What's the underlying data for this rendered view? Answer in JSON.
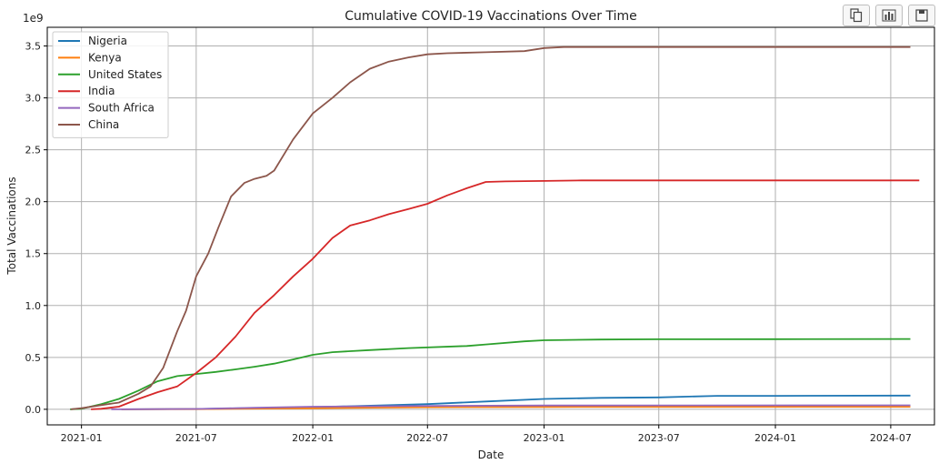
{
  "toolbar": {
    "buttons": [
      {
        "icon": "copy-icon"
      },
      {
        "icon": "bar-chart-icon"
      },
      {
        "icon": "save-icon"
      }
    ]
  },
  "chart_data": {
    "type": "line",
    "title": "Cumulative COVID-19 Vaccinations Over Time",
    "xlabel": "Date",
    "ylabel": "Total Vaccinations",
    "y_multiplier_label": "1e9",
    "x_range": [
      "2020-11-08",
      "2024-09-08"
    ],
    "ylim": [
      -0.15,
      3.68
    ],
    "x_ticks": [
      {
        "date": "2021-01-01",
        "label": "2021-01"
      },
      {
        "date": "2021-07-01",
        "label": "2021-07"
      },
      {
        "date": "2022-01-01",
        "label": "2022-01"
      },
      {
        "date": "2022-07-01",
        "label": "2022-07"
      },
      {
        "date": "2023-01-01",
        "label": "2023-01"
      },
      {
        "date": "2023-07-01",
        "label": "2023-07"
      },
      {
        "date": "2024-01-01",
        "label": "2024-01"
      },
      {
        "date": "2024-07-01",
        "label": "2024-07"
      }
    ],
    "y_ticks": [
      {
        "value": 0.0,
        "label": "0.0"
      },
      {
        "value": 0.5,
        "label": "0.5"
      },
      {
        "value": 1.0,
        "label": "1.0"
      },
      {
        "value": 1.5,
        "label": "1.5"
      },
      {
        "value": 2.0,
        "label": "2.0"
      },
      {
        "value": 2.5,
        "label": "2.5"
      },
      {
        "value": 3.0,
        "label": "3.0"
      },
      {
        "value": 3.5,
        "label": "3.5"
      }
    ],
    "grid": true,
    "legend_position": "top-left",
    "series": [
      {
        "name": "Nigeria",
        "color": "#1f77b4",
        "points": [
          [
            "2021-03-05",
            0
          ],
          [
            "2021-07-01",
            0.003
          ],
          [
            "2022-01-01",
            0.02
          ],
          [
            "2022-07-01",
            0.05
          ],
          [
            "2022-10-01",
            0.075
          ],
          [
            "2023-01-01",
            0.1
          ],
          [
            "2023-04-01",
            0.11
          ],
          [
            "2023-07-01",
            0.115
          ],
          [
            "2023-10-01",
            0.13
          ],
          [
            "2024-01-01",
            0.13
          ],
          [
            "2024-08-01",
            0.132
          ]
        ]
      },
      {
        "name": "Kenya",
        "color": "#ff7f0e",
        "points": [
          [
            "2021-03-05",
            0
          ],
          [
            "2021-07-01",
            0.002
          ],
          [
            "2022-01-01",
            0.01
          ],
          [
            "2022-07-01",
            0.02
          ],
          [
            "2023-01-01",
            0.023
          ],
          [
            "2024-08-01",
            0.024
          ]
        ]
      },
      {
        "name": "United States",
        "color": "#2ca02c",
        "points": [
          [
            "2020-12-14",
            0
          ],
          [
            "2021-01-01",
            0.005
          ],
          [
            "2021-02-01",
            0.05
          ],
          [
            "2021-03-01",
            0.1
          ],
          [
            "2021-04-01",
            0.18
          ],
          [
            "2021-05-01",
            0.27
          ],
          [
            "2021-06-01",
            0.32
          ],
          [
            "2021-07-01",
            0.34
          ],
          [
            "2021-08-01",
            0.36
          ],
          [
            "2021-09-01",
            0.385
          ],
          [
            "2021-10-01",
            0.41
          ],
          [
            "2021-11-01",
            0.44
          ],
          [
            "2021-12-01",
            0.48
          ],
          [
            "2022-01-01",
            0.525
          ],
          [
            "2022-02-01",
            0.55
          ],
          [
            "2022-03-01",
            0.56
          ],
          [
            "2022-04-01",
            0.57
          ],
          [
            "2022-06-01",
            0.59
          ],
          [
            "2022-09-01",
            0.61
          ],
          [
            "2022-10-01",
            0.625
          ],
          [
            "2022-12-01",
            0.655
          ],
          [
            "2023-01-01",
            0.665
          ],
          [
            "2023-04-01",
            0.672
          ],
          [
            "2023-07-01",
            0.675
          ],
          [
            "2024-01-01",
            0.676
          ],
          [
            "2024-08-01",
            0.677
          ]
        ]
      },
      {
        "name": "India",
        "color": "#d62728",
        "points": [
          [
            "2021-01-16",
            0
          ],
          [
            "2021-02-01",
            0.005
          ],
          [
            "2021-03-01",
            0.025
          ],
          [
            "2021-04-01",
            0.1
          ],
          [
            "2021-05-01",
            0.165
          ],
          [
            "2021-06-01",
            0.22
          ],
          [
            "2021-07-01",
            0.35
          ],
          [
            "2021-08-01",
            0.5
          ],
          [
            "2021-09-01",
            0.7
          ],
          [
            "2021-10-01",
            0.93
          ],
          [
            "2021-11-01",
            1.1
          ],
          [
            "2021-12-01",
            1.28
          ],
          [
            "2022-01-01",
            1.45
          ],
          [
            "2022-02-01",
            1.65
          ],
          [
            "2022-03-01",
            1.77
          ],
          [
            "2022-04-01",
            1.82
          ],
          [
            "2022-05-01",
            1.88
          ],
          [
            "2022-06-01",
            1.93
          ],
          [
            "2022-07-01",
            1.98
          ],
          [
            "2022-08-01",
            2.06
          ],
          [
            "2022-09-01",
            2.13
          ],
          [
            "2022-10-01",
            2.19
          ],
          [
            "2022-11-01",
            2.195
          ],
          [
            "2023-01-01",
            2.2
          ],
          [
            "2023-03-01",
            2.205
          ],
          [
            "2024-08-15",
            2.205
          ]
        ]
      },
      {
        "name": "South Africa",
        "color": "#9467bd",
        "points": [
          [
            "2021-02-17",
            0
          ],
          [
            "2021-07-01",
            0.003
          ],
          [
            "2021-10-01",
            0.015
          ],
          [
            "2022-01-01",
            0.025
          ],
          [
            "2022-07-01",
            0.033
          ],
          [
            "2023-01-01",
            0.037
          ],
          [
            "2024-08-01",
            0.038
          ]
        ]
      },
      {
        "name": "China",
        "color": "#8c564b",
        "points": [
          [
            "2020-12-15",
            0
          ],
          [
            "2021-01-01",
            0.01
          ],
          [
            "2021-02-01",
            0.04
          ],
          [
            "2021-03-01",
            0.065
          ],
          [
            "2021-04-01",
            0.15
          ],
          [
            "2021-04-20",
            0.22
          ],
          [
            "2021-05-10",
            0.4
          ],
          [
            "2021-06-01",
            0.75
          ],
          [
            "2021-06-15",
            0.95
          ],
          [
            "2021-07-01",
            1.28
          ],
          [
            "2021-07-20",
            1.5
          ],
          [
            "2021-08-05",
            1.75
          ],
          [
            "2021-08-25",
            2.05
          ],
          [
            "2021-09-15",
            2.18
          ],
          [
            "2021-10-01",
            2.22
          ],
          [
            "2021-10-20",
            2.25
          ],
          [
            "2021-11-01",
            2.3
          ],
          [
            "2021-12-01",
            2.6
          ],
          [
            "2022-01-01",
            2.85
          ],
          [
            "2022-02-01",
            3.0
          ],
          [
            "2022-03-01",
            3.15
          ],
          [
            "2022-04-01",
            3.28
          ],
          [
            "2022-05-01",
            3.35
          ],
          [
            "2022-06-01",
            3.39
          ],
          [
            "2022-07-01",
            3.42
          ],
          [
            "2022-08-01",
            3.43
          ],
          [
            "2022-10-01",
            3.44
          ],
          [
            "2022-12-01",
            3.45
          ],
          [
            "2023-01-01",
            3.48
          ],
          [
            "2023-02-01",
            3.49
          ],
          [
            "2024-08-01",
            3.49
          ]
        ]
      }
    ]
  }
}
